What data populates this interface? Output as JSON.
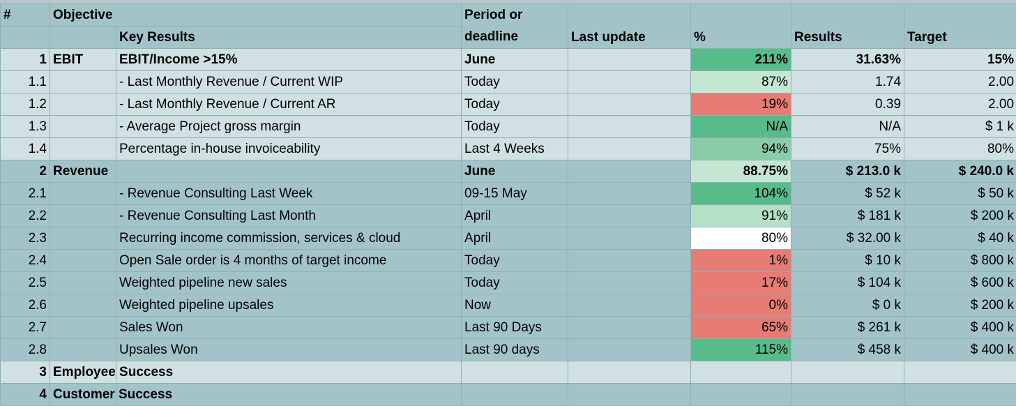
{
  "header": {
    "num": "#",
    "objective": "Objective",
    "key_results": "Key Results",
    "period": "Period or deadline",
    "last_update": "Last update",
    "pct": "%",
    "results": "Results",
    "target": "Target"
  },
  "rows": [
    {
      "num": "1",
      "objective": "EBIT",
      "kr": "EBIT/Income >15%",
      "period": "June",
      "pct": "211%",
      "results": "31.63%",
      "target": "15%"
    },
    {
      "num": "1.1",
      "objective": "",
      "kr": "- Last Monthly Revenue / Current WIP",
      "period": "Today",
      "pct": "87%",
      "results": "1.74",
      "target": "2.00"
    },
    {
      "num": "1.2",
      "objective": "",
      "kr": "- Last Monthly Revenue / Current AR",
      "period": "Today",
      "pct": "19%",
      "results": "0.39",
      "target": "2.00"
    },
    {
      "num": "1.3",
      "objective": "",
      "kr": "- Average Project gross margin",
      "period": "Today",
      "pct": "N/A",
      "results": "N/A",
      "target": "$ 1 k"
    },
    {
      "num": "1.4",
      "objective": "",
      "kr": "Percentage in-house invoiceability",
      "period": "Last 4 Weeks",
      "pct": "94%",
      "results": "75%",
      "target": "80%"
    },
    {
      "num": "2",
      "objective": "Revenue",
      "kr": "",
      "period": "June",
      "pct": "88.75%",
      "results": "$ 213.0 k",
      "target": "$ 240.0 k"
    },
    {
      "num": "2.1",
      "objective": "",
      "kr": "- Revenue Consulting Last Week",
      "period": "09-15 May",
      "pct": "104%",
      "results": "$ 52 k",
      "target": "$ 50 k"
    },
    {
      "num": "2.2",
      "objective": "",
      "kr": "- Revenue Consulting Last Month",
      "period": "April",
      "pct": "91%",
      "results": "$ 181 k",
      "target": "$ 200 k"
    },
    {
      "num": "2.3",
      "objective": "",
      "kr": "Recurring income commission, services & cloud",
      "period": "April",
      "pct": "80%",
      "results": "$ 32.00 k",
      "target": "$ 40 k"
    },
    {
      "num": "2.4",
      "objective": "",
      "kr": "Open Sale order is 4 months of target income",
      "period": "Today",
      "pct": "1%",
      "results": "$ 10 k",
      "target": "$ 800 k"
    },
    {
      "num": "2.5",
      "objective": "",
      "kr": "Weighted pipeline new sales",
      "period": "Today",
      "pct": "17%",
      "results": "$ 104 k",
      "target": "$ 600 k"
    },
    {
      "num": "2.6",
      "objective": "",
      "kr": "Weighted pipeline upsales",
      "period": "Now",
      "pct": "0%",
      "results": "$ 0 k",
      "target": "$ 200 k"
    },
    {
      "num": "2.7",
      "objective": "",
      "kr": "Sales Won",
      "period": "Last 90 Days",
      "pct": "65%",
      "results": "$ 261 k",
      "target": "$ 400 k"
    },
    {
      "num": "2.8",
      "objective": "",
      "kr": "Upsales Won",
      "period": "Last 90 days",
      "pct": "115%",
      "results": "$ 458 k",
      "target": "$ 400 k"
    },
    {
      "num": "3",
      "objective": "Employee Success",
      "kr": "",
      "period": "",
      "pct": "",
      "results": "",
      "target": ""
    },
    {
      "num": "4",
      "objective": "Customer Success",
      "kr": "",
      "period": "",
      "pct": "",
      "results": "",
      "target": ""
    }
  ],
  "pct_colors": {
    "dark_green": "#57bb8a",
    "mid_green": "#8acba8",
    "light_green": "#b5dfc7",
    "pale_green": "#c4e6d3",
    "white": "#ffffff",
    "red": "#e67c73"
  }
}
